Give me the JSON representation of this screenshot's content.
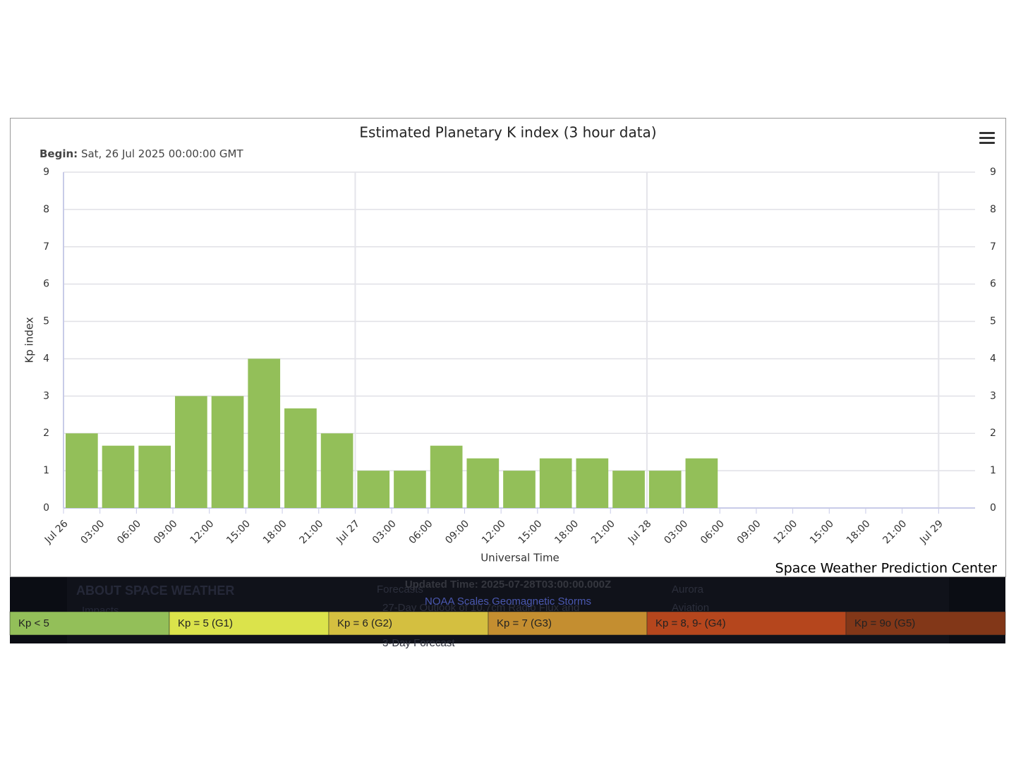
{
  "chart_data": {
    "type": "bar",
    "title": "Estimated Planetary K index (3 hour data)",
    "subtitle_label": "Begin:",
    "subtitle": "Sat, 26 Jul 2025 00:00:00 GMT",
    "y_label": "Kp index",
    "x_label": "Universal Time",
    "credit": "Space Weather Prediction Center",
    "color": "#93bf59",
    "x": [
      "2025-07-26T00:00",
      "2025-07-26T03:00",
      "2025-07-26T06:00",
      "2025-07-26T09:00",
      "2025-07-26T12:00",
      "2025-07-26T15:00",
      "2025-07-26T18:00",
      "2025-07-26T21:00",
      "2025-07-27T00:00",
      "2025-07-27T03:00",
      "2025-07-27T06:00",
      "2025-07-27T09:00",
      "2025-07-27T12:00",
      "2025-07-27T15:00",
      "2025-07-27T18:00",
      "2025-07-27T21:00",
      "2025-07-28T00:00",
      "2025-07-28T03:00"
    ],
    "values": [
      2,
      1.67,
      1.67,
      3,
      3,
      4,
      2.67,
      2,
      1,
      1,
      1.67,
      1.33,
      1,
      1.33,
      1.33,
      1,
      1,
      1.33
    ],
    "xlim": [
      "2025-07-26T00:00",
      "2025-07-29T03:00"
    ],
    "xticks": [
      {
        "value": "2025-07-26T00:00",
        "label": "Jul 26"
      },
      {
        "value": "2025-07-26T03:00",
        "label": "03:00"
      },
      {
        "value": "2025-07-26T06:00",
        "label": "06:00"
      },
      {
        "value": "2025-07-26T09:00",
        "label": "09:00"
      },
      {
        "value": "2025-07-26T12:00",
        "label": "12:00"
      },
      {
        "value": "2025-07-26T15:00",
        "label": "15:00"
      },
      {
        "value": "2025-07-26T18:00",
        "label": "18:00"
      },
      {
        "value": "2025-07-26T21:00",
        "label": "21:00"
      },
      {
        "value": "2025-07-27T00:00",
        "label": "Jul 27"
      },
      {
        "value": "2025-07-27T03:00",
        "label": "03:00"
      },
      {
        "value": "2025-07-27T06:00",
        "label": "06:00"
      },
      {
        "value": "2025-07-27T09:00",
        "label": "09:00"
      },
      {
        "value": "2025-07-27T12:00",
        "label": "12:00"
      },
      {
        "value": "2025-07-27T15:00",
        "label": "15:00"
      },
      {
        "value": "2025-07-27T18:00",
        "label": "18:00"
      },
      {
        "value": "2025-07-27T21:00",
        "label": "21:00"
      },
      {
        "value": "2025-07-28T00:00",
        "label": "Jul 28"
      },
      {
        "value": "2025-07-28T03:00",
        "label": "03:00"
      },
      {
        "value": "2025-07-28T06:00",
        "label": "06:00"
      },
      {
        "value": "2025-07-28T09:00",
        "label": "09:00"
      },
      {
        "value": "2025-07-28T12:00",
        "label": "12:00"
      },
      {
        "value": "2025-07-28T15:00",
        "label": "15:00"
      },
      {
        "value": "2025-07-28T18:00",
        "label": "18:00"
      },
      {
        "value": "2025-07-28T21:00",
        "label": "21:00"
      },
      {
        "value": "2025-07-29T00:00",
        "label": "Jul 29"
      }
    ],
    "x_grid_ticks": [
      8,
      16,
      24
    ],
    "ylim": [
      0,
      9
    ],
    "yticks": [
      0,
      1,
      2,
      3,
      4,
      5,
      6,
      7,
      8,
      9
    ],
    "y2lim": [
      0,
      9
    ],
    "y2ticks": [
      0,
      1,
      2,
      3,
      4,
      5,
      6,
      7,
      8,
      9
    ],
    "grid": true
  },
  "footer": {
    "about": "ABOUT SPACE WEATHER",
    "impacts": "Impacts",
    "forecasts": "Forecasts",
    "outlook": "27-Day Outlook of 10.7cm Radio Flux and",
    "three_day": "3-Day Forecast",
    "aurora": "Aurora",
    "aviation": "Aviation",
    "updated": "Updated Time: 2025-07-28T03:00:00.000Z",
    "scales_link": "NOAA Scales Geomagnetic Storms"
  },
  "scale_bar": [
    {
      "label": "Kp < 5",
      "color": "#93bf59"
    },
    {
      "label": "Kp = 5 (G1)",
      "color": "#dbe34b"
    },
    {
      "label": "Kp = 6 (G2)",
      "color": "#d4bf40"
    },
    {
      "label": "Kp = 7 (G3)",
      "color": "#c48e30"
    },
    {
      "label": "Kp = 8, 9- (G4)",
      "color": "#b5461d"
    },
    {
      "label": "Kp = 9o (G5)",
      "color": "#823718"
    }
  ]
}
